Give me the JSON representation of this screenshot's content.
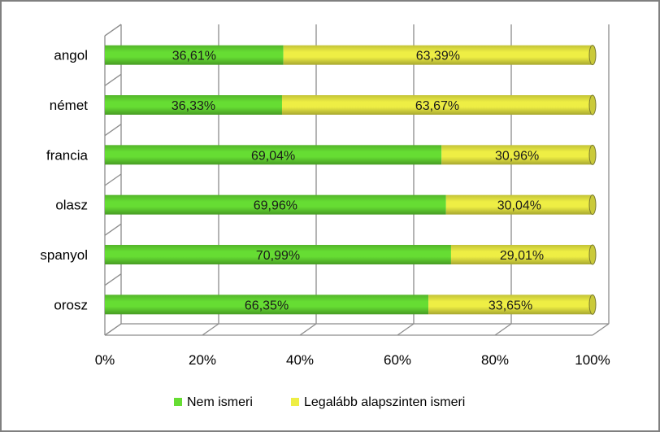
{
  "chart_data": {
    "type": "bar",
    "orientation": "horizontal",
    "stacked": true,
    "percent_stacked": true,
    "style": "3d-cylinder",
    "categories": [
      "angol",
      "német",
      "francia",
      "olasz",
      "spanyol",
      "orosz"
    ],
    "series": [
      {
        "name": "Nem ismeri",
        "color": "#66dd33",
        "values": [
          36.61,
          36.33,
          69.04,
          69.96,
          70.99,
          66.35
        ],
        "labels": [
          "36,61%",
          "36,33%",
          "69,04%",
          "69,96%",
          "70,99%",
          "66,35%"
        ]
      },
      {
        "name": "Legalább alapszinten ismeri",
        "color": "#eeee44",
        "values": [
          63.39,
          63.67,
          30.96,
          30.04,
          29.01,
          33.65
        ],
        "labels": [
          "63,39%",
          "63,67%",
          "30,96%",
          "30,04%",
          "29,01%",
          "33,65%"
        ]
      }
    ],
    "x_ticks": [
      "0%",
      "20%",
      "40%",
      "60%",
      "80%",
      "100%"
    ],
    "xlim": [
      0,
      100
    ],
    "grid": true,
    "legend": "bottom"
  }
}
